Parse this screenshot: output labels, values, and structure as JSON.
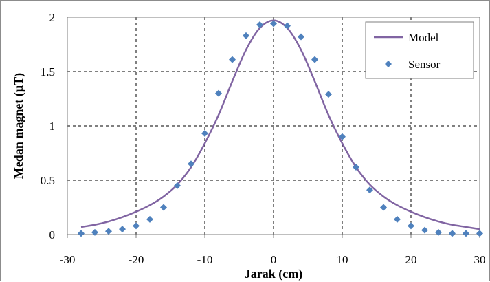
{
  "chart_data": {
    "type": "scatter",
    "xlabel": "Jarak (cm)",
    "ylabel": "Medan magnet (µT)",
    "xlim": [
      -30,
      30
    ],
    "ylim": [
      0,
      2
    ],
    "xticks": [
      "-30",
      "-20",
      "-10",
      "0",
      "10",
      "20",
      "30"
    ],
    "yticks": [
      "0",
      "0.5",
      "1",
      "1.5",
      "2"
    ],
    "grid": true,
    "legend_position": "top-right",
    "series": [
      {
        "name": "Model",
        "kind": "line",
        "color": "#8064a2",
        "x": [
          -28,
          -26,
          -24,
          -22,
          -20,
          -18,
          -16,
          -14,
          -12,
          -10,
          -8,
          -6,
          -4,
          -2,
          0,
          2,
          4,
          6,
          8,
          10,
          12,
          14,
          16,
          18,
          20,
          22,
          24,
          26,
          28,
          30
        ],
        "y": [
          0.07,
          0.09,
          0.12,
          0.16,
          0.21,
          0.27,
          0.35,
          0.46,
          0.62,
          0.84,
          1.1,
          1.41,
          1.7,
          1.9,
          1.97,
          1.9,
          1.7,
          1.41,
          1.1,
          0.84,
          0.62,
          0.46,
          0.35,
          0.27,
          0.21,
          0.16,
          0.12,
          0.09,
          0.07,
          0.05
        ]
      },
      {
        "name": "Sensor",
        "kind": "scatter",
        "marker": "diamond",
        "color": "#4f81bd",
        "x": [
          -28,
          -26,
          -24,
          -22,
          -20,
          -18,
          -16,
          -14,
          -12,
          -10,
          -8,
          -6,
          -4,
          -2,
          0,
          2,
          4,
          6,
          8,
          10,
          12,
          14,
          16,
          18,
          20,
          22,
          24,
          26,
          28,
          30
        ],
        "y": [
          0.01,
          0.02,
          0.03,
          0.05,
          0.08,
          0.14,
          0.25,
          0.45,
          0.65,
          0.93,
          1.3,
          1.61,
          1.83,
          1.93,
          1.94,
          1.92,
          1.82,
          1.61,
          1.29,
          0.9,
          0.62,
          0.41,
          0.25,
          0.14,
          0.08,
          0.04,
          0.02,
          0.01,
          0.01,
          0.01
        ]
      }
    ]
  }
}
